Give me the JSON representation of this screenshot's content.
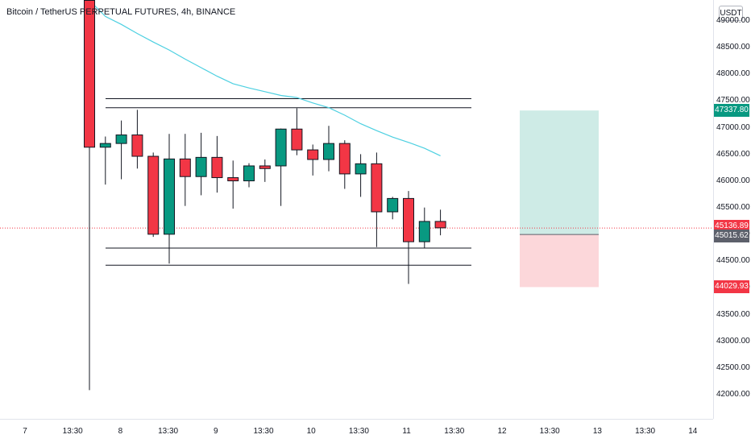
{
  "header": {
    "title": "Bitcoin / TetherUS PERPETUAL FUTURES, 4h, BINANCE"
  },
  "price_scale": {
    "currency": "USDT"
  },
  "badges": {
    "target": {
      "text": "47337.80",
      "color": "#089981"
    },
    "last": {
      "text": "45136.89",
      "color": "#f23645"
    },
    "entry": {
      "text": "45015.62",
      "color": "#5d606b"
    },
    "stop": {
      "text": "44029.93",
      "color": "#f23645"
    }
  },
  "chart_data": {
    "type": "candlestick",
    "y_ticks": [
      "49000.00",
      "48500.00",
      "48000.00",
      "47500.00",
      "47000.00",
      "46500.00",
      "46000.00",
      "45500.00",
      "45000.00",
      "44500.00",
      "44000.00",
      "43500.00",
      "43000.00",
      "42500.00",
      "42000.00"
    ],
    "x_ticks": [
      "7",
      "13:30",
      "8",
      "13:30",
      "9",
      "13:30",
      "10",
      "13:30",
      "11",
      "13:30",
      "12",
      "13:30",
      "13",
      "13:30",
      "14"
    ],
    "ylim": [
      41800,
      49400
    ],
    "colors": {
      "up": "#089981",
      "down": "#f23645",
      "ma": "#4dd0e1"
    },
    "candles": [
      {
        "o": 49400,
        "h": 49400,
        "l": 42100,
        "c": 46650
      },
      {
        "o": 46650,
        "h": 46850,
        "l": 45950,
        "c": 46720
      },
      {
        "o": 46720,
        "h": 47150,
        "l": 46050,
        "c": 46880
      },
      {
        "o": 46880,
        "h": 47350,
        "l": 46250,
        "c": 46480
      },
      {
        "o": 46480,
        "h": 46550,
        "l": 44970,
        "c": 45020
      },
      {
        "o": 45020,
        "h": 46900,
        "l": 44470,
        "c": 46430
      },
      {
        "o": 46430,
        "h": 46900,
        "l": 45550,
        "c": 46100
      },
      {
        "o": 46100,
        "h": 46920,
        "l": 45750,
        "c": 46460
      },
      {
        "o": 46460,
        "h": 46860,
        "l": 45800,
        "c": 46080
      },
      {
        "o": 46080,
        "h": 46400,
        "l": 45500,
        "c": 46020
      },
      {
        "o": 46020,
        "h": 46350,
        "l": 45900,
        "c": 46300
      },
      {
        "o": 46300,
        "h": 46420,
        "l": 46000,
        "c": 46250
      },
      {
        "o": 46300,
        "h": 47000,
        "l": 45550,
        "c": 46990
      },
      {
        "o": 46990,
        "h": 47380,
        "l": 46500,
        "c": 46600
      },
      {
        "o": 46600,
        "h": 46700,
        "l": 46120,
        "c": 46420
      },
      {
        "o": 46420,
        "h": 47050,
        "l": 46200,
        "c": 46720
      },
      {
        "o": 46720,
        "h": 46780,
        "l": 45870,
        "c": 46150
      },
      {
        "o": 46150,
        "h": 46520,
        "l": 45720,
        "c": 46340
      },
      {
        "o": 46340,
        "h": 46550,
        "l": 44780,
        "c": 45440
      },
      {
        "o": 45440,
        "h": 45720,
        "l": 45300,
        "c": 45690
      },
      {
        "o": 45690,
        "h": 45830,
        "l": 44090,
        "c": 44880
      },
      {
        "o": 44880,
        "h": 45520,
        "l": 44760,
        "c": 45260
      },
      {
        "o": 45260,
        "h": 45480,
        "l": 45000,
        "c": 45140
      }
    ],
    "ma_series": [
      {
        "c": 0,
        "v": 49400
      },
      {
        "c": 1,
        "v": 49100
      },
      {
        "c": 2,
        "v": 48950
      },
      {
        "c": 3,
        "v": 48780
      },
      {
        "c": 4,
        "v": 48620
      },
      {
        "c": 5,
        "v": 48470
      },
      {
        "c": 6,
        "v": 48300
      },
      {
        "c": 7,
        "v": 48140
      },
      {
        "c": 8,
        "v": 47980
      },
      {
        "c": 9,
        "v": 47840
      },
      {
        "c": 10,
        "v": 47760
      },
      {
        "c": 11,
        "v": 47690
      },
      {
        "c": 12,
        "v": 47620
      },
      {
        "c": 13,
        "v": 47580
      },
      {
        "c": 14,
        "v": 47480
      },
      {
        "c": 15,
        "v": 47390
      },
      {
        "c": 16,
        "v": 47250
      },
      {
        "c": 17,
        "v": 47090
      },
      {
        "c": 18,
        "v": 46960
      },
      {
        "c": 19,
        "v": 46840
      },
      {
        "c": 20,
        "v": 46740
      },
      {
        "c": 21,
        "v": 46630
      },
      {
        "c": 22,
        "v": 46490
      }
    ],
    "horizontal_lines": [
      47560,
      47390,
      44760,
      44440
    ],
    "position": {
      "target": 47337.8,
      "entry": 45015.62,
      "stop": 44029.93,
      "last": 45136.89
    }
  }
}
